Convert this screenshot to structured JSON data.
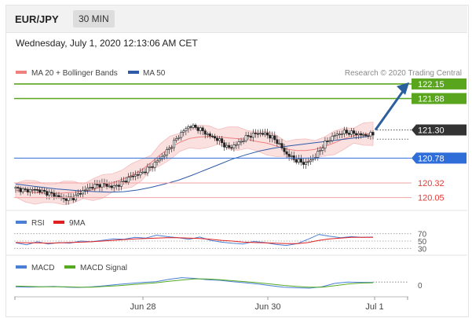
{
  "header": {
    "pair": "EUR/JPY",
    "timeframe": "30 MIN"
  },
  "datetime": "Wednesday, July 1, 2020 12:13:06 AM CET",
  "legend": {
    "bollinger": "MA 20 + Bollinger Bands",
    "ma50": "MA 50",
    "credit": "Research © 2020 Trading Central",
    "rsi": "RSI",
    "rsi_ma": "9MA",
    "macd": "MACD",
    "macd_signal": "MACD Signal"
  },
  "colors": {
    "bollinger": "#f08080",
    "bollinger_fill": "#fbe0e0",
    "ma50": "#2f5aa8",
    "resistance": "#5aa51e",
    "support": "#e53935",
    "pivot": "#2f6ed8",
    "arrow": "#2b5f9e",
    "last": "#333333",
    "rsi": "#4a7fd6",
    "rsi_ma": "#e02020",
    "macd": "#4a7fd6",
    "macd_signal": "#55aa22"
  },
  "chart_data": [
    {
      "type": "line",
      "panel": "price",
      "x_labels": [
        "Jun 28",
        "Jun 30",
        "Jul 1"
      ],
      "levels": [
        {
          "value": 122.15,
          "label": "122.15",
          "kind": "resistance"
        },
        {
          "value": 121.88,
          "label": "121.88",
          "kind": "resistance"
        },
        {
          "value": 121.3,
          "label": "121.30",
          "kind": "last"
        },
        {
          "value": 120.78,
          "label": "120.78",
          "kind": "pivot"
        },
        {
          "value": 120.32,
          "label": "120.32",
          "kind": "support"
        },
        {
          "value": 120.05,
          "label": "120.05",
          "kind": "support"
        }
      ],
      "ylim": [
        119.9,
        122.25
      ],
      "series": [
        {
          "name": "MA 50",
          "values": [
            120.3,
            120.27,
            120.24,
            120.21,
            120.19,
            120.17,
            120.16,
            120.15,
            120.16,
            120.19,
            120.24,
            120.3,
            120.37,
            120.46,
            120.56,
            120.66,
            120.76,
            120.84,
            120.91,
            120.96,
            121.0,
            121.03,
            121.06,
            121.09,
            121.12,
            121.15,
            121.18
          ]
        }
      ],
      "price_path": [
        120.22,
        120.18,
        120.2,
        120.15,
        120.1,
        120.02,
        120.05,
        120.18,
        120.26,
        120.3,
        120.24,
        120.32,
        120.45,
        120.5,
        120.62,
        120.78,
        120.98,
        121.22,
        121.38,
        121.32,
        121.2,
        121.12,
        120.96,
        121.05,
        121.18,
        121.24,
        121.22,
        121.1,
        120.86,
        120.74,
        120.68,
        120.8,
        121.05,
        121.2,
        121.26,
        121.24,
        121.2,
        121.22
      ]
    },
    {
      "type": "line",
      "panel": "rsi",
      "y_ticks": [
        70,
        50,
        30
      ],
      "ylim": [
        20,
        80
      ],
      "series": [
        {
          "name": "RSI",
          "values": [
            45,
            40,
            48,
            42,
            46,
            44,
            50,
            48,
            52,
            56,
            55,
            60,
            58,
            66,
            62,
            59,
            55,
            61,
            52,
            47,
            44,
            42,
            49,
            46,
            41,
            38,
            43,
            55,
            68,
            63,
            59,
            62,
            60,
            61
          ]
        },
        {
          "name": "9MA",
          "values": [
            46,
            45,
            45,
            44,
            45,
            46,
            47,
            48,
            50,
            52,
            54,
            56,
            57,
            58,
            59,
            59,
            58,
            57,
            55,
            52,
            50,
            47,
            46,
            45,
            44,
            43,
            43,
            46,
            52,
            56,
            58,
            60,
            60,
            60
          ]
        }
      ]
    },
    {
      "type": "line",
      "panel": "macd",
      "y_ticks": [
        0
      ],
      "ylim": [
        -0.3,
        0.35
      ],
      "series": [
        {
          "name": "MACD",
          "values": [
            -0.05,
            -0.06,
            -0.05,
            -0.04,
            -0.06,
            -0.07,
            -0.05,
            -0.02,
            0.02,
            0.05,
            0.08,
            0.1,
            0.17,
            0.22,
            0.2,
            0.16,
            0.14,
            0.1,
            0.07,
            0.03,
            -0.02,
            -0.06,
            -0.08,
            -0.09,
            -0.05,
            0.05,
            0.09,
            0.08,
            0.08
          ]
        },
        {
          "name": "MACD Signal",
          "values": [
            -0.03,
            -0.04,
            -0.05,
            -0.05,
            -0.05,
            -0.06,
            -0.06,
            -0.04,
            -0.02,
            0.01,
            0.04,
            0.07,
            0.11,
            0.15,
            0.18,
            0.18,
            0.16,
            0.13,
            0.1,
            0.07,
            0.03,
            -0.01,
            -0.04,
            -0.06,
            -0.06,
            -0.02,
            0.03,
            0.06,
            0.07
          ]
        }
      ]
    }
  ]
}
